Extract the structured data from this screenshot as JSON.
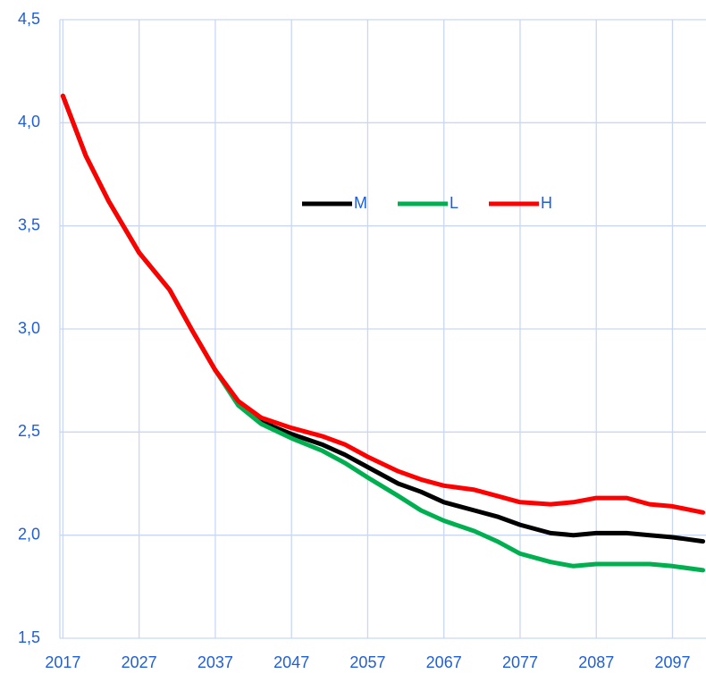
{
  "chart_data": {
    "type": "line",
    "x": [
      2017,
      2020,
      2023,
      2027,
      2031,
      2034,
      2037,
      2040,
      2043,
      2047,
      2051,
      2054,
      2057,
      2061,
      2064,
      2067,
      2071,
      2074,
      2077,
      2081,
      2084,
      2087,
      2091,
      2094,
      2097,
      2101
    ],
    "series": [
      {
        "name": "M",
        "color": "#000000",
        "values": [
          4.13,
          3.84,
          3.62,
          3.37,
          3.19,
          2.99,
          2.8,
          2.65,
          2.55,
          2.49,
          2.44,
          2.39,
          2.33,
          2.25,
          2.21,
          2.16,
          2.12,
          2.09,
          2.05,
          2.01,
          2.0,
          2.01,
          2.01,
          2.0,
          1.99,
          1.97
        ]
      },
      {
        "name": "L",
        "color": "#00b050",
        "values": [
          4.13,
          3.84,
          3.62,
          3.37,
          3.19,
          2.99,
          2.8,
          2.63,
          2.54,
          2.47,
          2.41,
          2.35,
          2.28,
          2.19,
          2.12,
          2.07,
          2.02,
          1.97,
          1.91,
          1.87,
          1.85,
          1.86,
          1.86,
          1.86,
          1.85,
          1.83
        ]
      },
      {
        "name": "H",
        "color": "#ff0000",
        "values": [
          4.13,
          3.84,
          3.62,
          3.37,
          3.19,
          2.99,
          2.8,
          2.65,
          2.57,
          2.52,
          2.48,
          2.44,
          2.38,
          2.31,
          2.27,
          2.24,
          2.22,
          2.19,
          2.16,
          2.15,
          2.16,
          2.18,
          2.18,
          2.15,
          2.14,
          2.11
        ]
      }
    ],
    "xlim": [
      2016.6,
      2101.4
    ],
    "xticks": [
      2017,
      2027,
      2037,
      2047,
      2057,
      2067,
      2077,
      2087,
      2097
    ],
    "ylim": [
      1.5,
      4.5
    ],
    "yticks": [
      {
        "value": 1.5,
        "label": "1,5"
      },
      {
        "value": 2.0,
        "label": "2,0"
      },
      {
        "value": 2.5,
        "label": "2,5"
      },
      {
        "value": 3.0,
        "label": "3,0"
      },
      {
        "value": 3.5,
        "label": "3,5"
      },
      {
        "value": 4.0,
        "label": "4,0"
      },
      {
        "value": 4.5,
        "label": "4,5"
      }
    ],
    "grid": true
  }
}
